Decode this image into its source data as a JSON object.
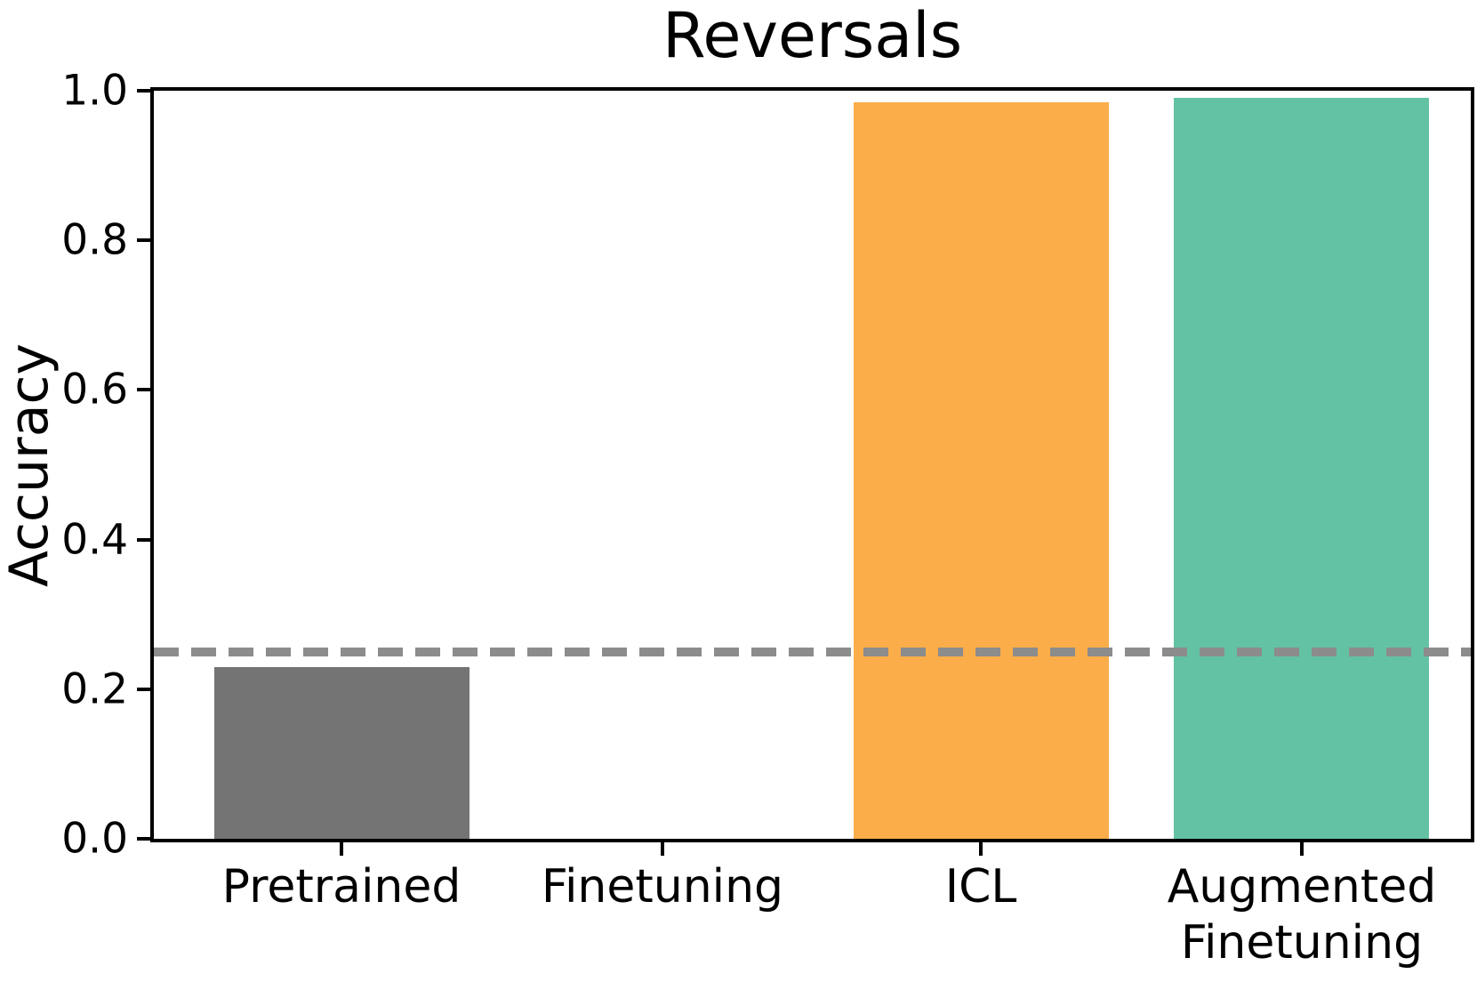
{
  "chart_data": {
    "type": "bar",
    "title": "Reversals",
    "xlabel": "",
    "ylabel": "Accuracy",
    "categories": [
      "Pretrained",
      "Finetuning",
      "ICL",
      "Augmented\nFinetuning"
    ],
    "values": [
      0.23,
      0.0,
      0.985,
      0.99
    ],
    "bar_colors": [
      "#747474",
      "#747474",
      "#FAAD48",
      "#63C2A4"
    ],
    "ylim": [
      0.0,
      1.0
    ],
    "yticks": [
      0.0,
      0.2,
      0.4,
      0.6,
      0.8,
      1.0
    ],
    "ytick_labels": [
      "0.0",
      "0.2",
      "0.4",
      "0.6",
      "0.8",
      "1.0"
    ],
    "reference_line": {
      "value": 0.25,
      "style": "dashed",
      "color": "#8C8C8C"
    },
    "grid": false,
    "legend": null,
    "axis_color": "#000000",
    "background_color": "#FFFFFF"
  }
}
